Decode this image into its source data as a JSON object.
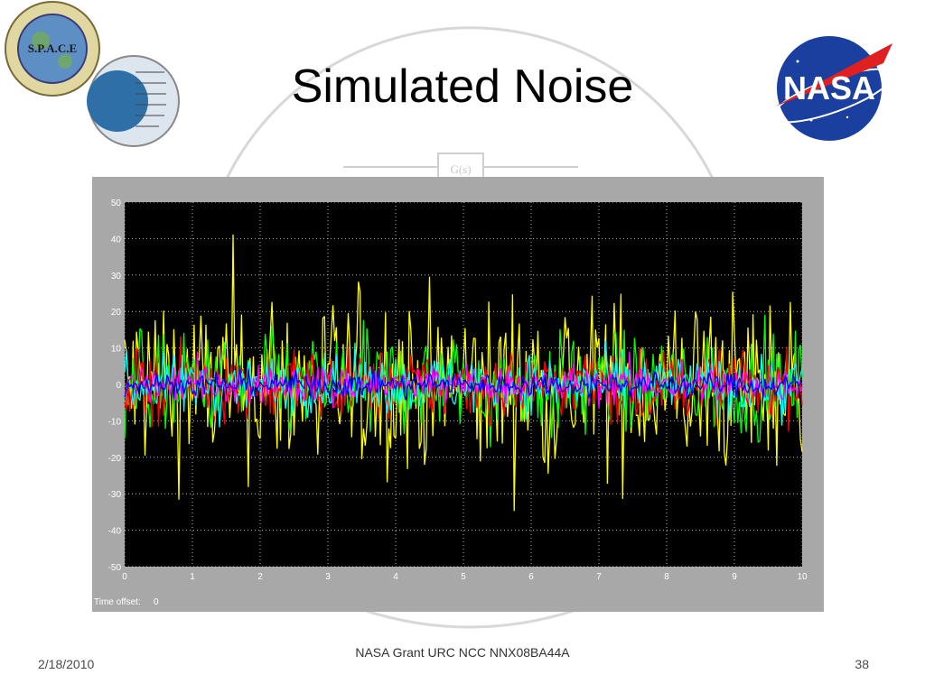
{
  "slide": {
    "title": "Simulated Noise",
    "footer_date": "2/18/2010",
    "footer_grant": "NASA Grant URC NCC NNX08BA44A",
    "page_number": "38"
  },
  "logos": {
    "space_logo_text": "S.P.A.C.E",
    "nasa_logo_text": "NASA"
  },
  "watermark": {
    "block_label": "G(s)"
  },
  "scope": {
    "time_offset_label": "Time offset:",
    "time_offset_value": "0"
  },
  "chart_data": {
    "type": "line",
    "x_ticks": [
      "0",
      "1",
      "2",
      "3",
      "4",
      "5",
      "6",
      "7",
      "8",
      "9",
      "10"
    ],
    "y_ticks": [
      "50",
      "40",
      "30",
      "20",
      "10",
      "0",
      "-10",
      "-20",
      "-30",
      "-40",
      "-50"
    ],
    "xlim": [
      0,
      10
    ],
    "ylim": [
      -50,
      50
    ],
    "grid": true,
    "legend": "none",
    "background": "#000000",
    "series": [
      {
        "color": "#ffff00",
        "amplitude_peak": 46
      },
      {
        "color": "#00ff00",
        "amplitude_peak": 25
      },
      {
        "color": "#ff0000",
        "amplitude_peak": 18
      },
      {
        "color": "#00ffff",
        "amplitude_peak": 15
      },
      {
        "color": "#ff00ff",
        "amplitude_peak": 10
      },
      {
        "color": "#0000ff",
        "amplitude_peak": 6
      }
    ]
  }
}
